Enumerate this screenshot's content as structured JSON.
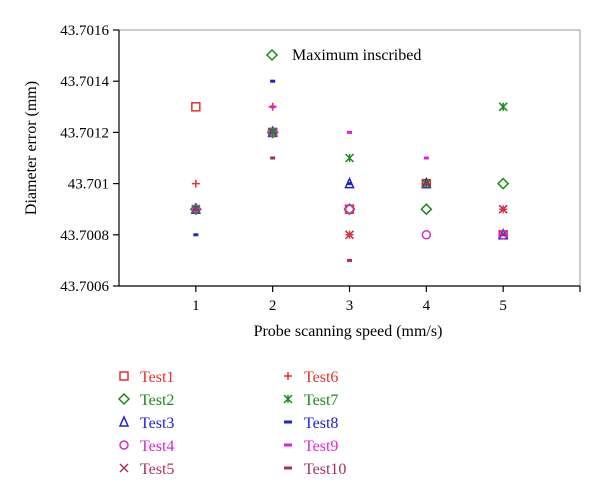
{
  "chart_data": {
    "type": "scatter",
    "title": "",
    "xlabel": "Probe scanning speed (mm/s)",
    "ylabel": "Diameter error (mm)",
    "xlim": [
      0,
      6
    ],
    "ylim": [
      43.7006,
      43.7016
    ],
    "xticks": [
      1,
      2,
      3,
      4,
      5
    ],
    "yticks": [
      43.7006,
      43.7008,
      43.701,
      43.7012,
      43.7014,
      43.7016
    ],
    "ytick_labels": [
      "43.7006",
      "43.7008",
      "43.701",
      "43.7012",
      "43.7014",
      "43.7016"
    ],
    "annotation": {
      "marker": "diamond",
      "color": "#1a8a1a",
      "text": "Maximum inscribed"
    },
    "grid": false,
    "legend_placement": "bottom",
    "series": [
      {
        "name": "Test1",
        "marker": "square",
        "color": "#e8302c",
        "x": [
          1,
          2,
          3,
          4,
          5
        ],
        "y": [
          43.7013,
          43.7012,
          43.7009,
          43.701,
          43.7008
        ]
      },
      {
        "name": "Test2",
        "marker": "diamond",
        "color": "#1a8a1a",
        "x": [
          1,
          2,
          3,
          4,
          5
        ],
        "y": [
          43.7009,
          43.7012,
          43.7009,
          43.7009,
          43.701
        ]
      },
      {
        "name": "Test3",
        "marker": "triangle",
        "color": "#1c22d8",
        "x": [
          1,
          2,
          3,
          4,
          5
        ],
        "y": [
          43.7009,
          43.7012,
          43.701,
          43.701,
          43.7008
        ]
      },
      {
        "name": "Test4",
        "marker": "circle",
        "color": "#d02ad0",
        "x": [
          1,
          2,
          3,
          4,
          5
        ],
        "y": [
          43.7009,
          43.7012,
          43.7009,
          43.7008,
          43.7008
        ]
      },
      {
        "name": "Test5",
        "marker": "x",
        "color": "#b0305a",
        "x": [
          1,
          2,
          3,
          4,
          5
        ],
        "y": [
          43.7009,
          43.7012,
          43.7008,
          43.701,
          43.7009
        ]
      },
      {
        "name": "Test6",
        "marker": "plus",
        "color": "#e8302c",
        "x": [
          1,
          2,
          3,
          4,
          5
        ],
        "y": [
          43.701,
          43.7013,
          43.7008,
          43.701,
          43.7009
        ]
      },
      {
        "name": "Test7",
        "marker": "asterisk",
        "color": "#1a8a1a",
        "x": [
          1,
          2,
          3,
          4,
          5
        ],
        "y": [
          43.7009,
          43.7012,
          43.7011,
          43.701,
          43.7013
        ]
      },
      {
        "name": "Test8",
        "marker": "dash",
        "color": "#1c22d8",
        "x": [
          1,
          2,
          3,
          4,
          5
        ],
        "y": [
          43.7008,
          43.7014,
          43.701,
          43.701,
          43.7008
        ]
      },
      {
        "name": "Test9",
        "marker": "dash",
        "color": "#e020e0",
        "x": [
          1,
          2,
          3,
          4,
          5
        ],
        "y": [
          43.7009,
          43.7013,
          43.7012,
          43.7011,
          43.7008
        ]
      },
      {
        "name": "Test10",
        "marker": "dash",
        "color": "#a03060",
        "x": [
          1,
          2,
          3,
          4,
          5
        ],
        "y": [
          43.7009,
          43.7011,
          43.7007,
          43.701,
          43.7008
        ]
      }
    ]
  }
}
